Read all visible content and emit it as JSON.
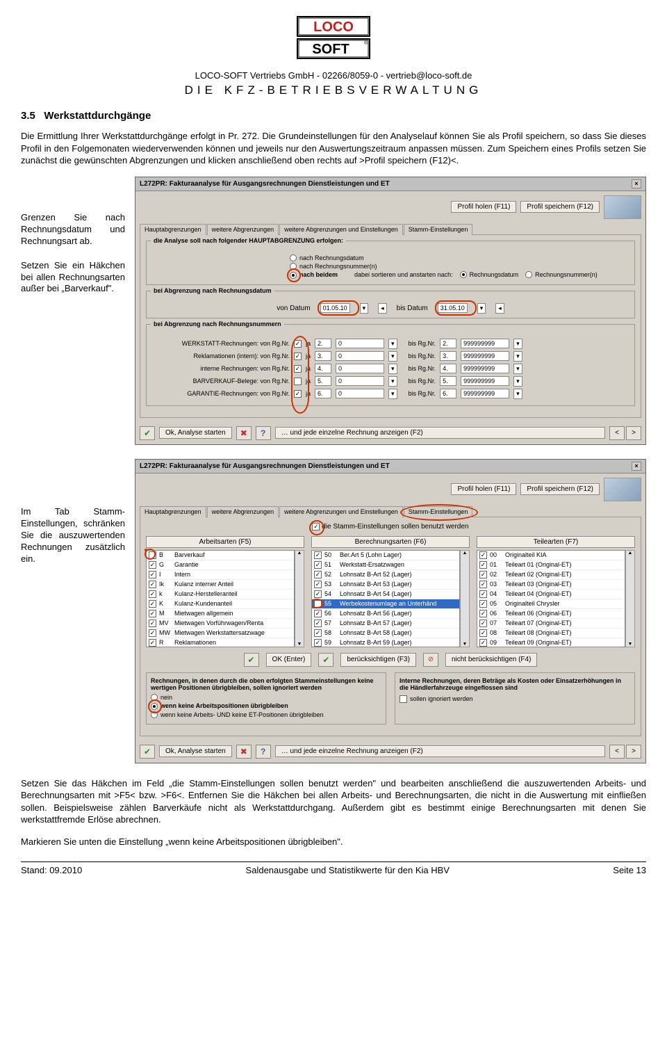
{
  "logo": {
    "t1": "LOCO",
    "t2": "SOFT",
    "color": "#c41e1e"
  },
  "header": {
    "line1": "LOCO-SOFT Vertriebs GmbH - 02266/8059-0 - vertrieb@loco-soft.de",
    "line2": "DIE KFZ-BETRIEBSVERWALTUNG"
  },
  "section": {
    "num": "3.5",
    "title": "Werkstattdurchgänge"
  },
  "p1": "Die Ermittlung Ihrer Werkstattdurchgänge erfolgt in Pr. 272. Die Grundeinstellungen für den Analyselauf können Sie als Profil speichern, so dass Sie dieses Profil in den Folgemonaten wiederverwenden können und jeweils nur den Auswertungszeitraum anpassen müssen. Zum Speichern eines Profils setzen Sie zunächst die gewünschten Abgrenzungen und klicken anschließend oben rechts auf >Profil speichern (F12)<.",
  "side1": {
    "a": "Grenzen Sie nach Rechnungsdatum und Rechnungsart ab.",
    "b": "Setzen Sie ein Häkchen bei allen Rechnungsarten außer bei „Barverkauf\"."
  },
  "side2": "Im Tab Stamm-Einstellungen, schränken Sie die auszuwertenden Rechnungen zusätzlich ein.",
  "dlg": {
    "title": "L272PR: Fakturaanalyse für Ausgangsrechnungen Dienstleistungen und ET",
    "profil_holen": "Profil holen (F11)",
    "profil_speichern": "Profil speichern (F12)",
    "tabs": [
      "Hauptabgrenzungen",
      "weitere Abgrenzungen",
      "weitere Abgrenzungen und Einstellungen",
      "Stamm-Einstellungen"
    ],
    "grp_legend": "die Analyse soll nach folgender HAUPTABGRENZUNG erfolgen:",
    "r1": "nach Rechnungsdatum",
    "r2": "nach Rechnungsnummer(n)",
    "r3": "nach beidem",
    "r3b": "dabei sortieren und anstarten nach:",
    "r3c": "Rechnungsdatum",
    "r3d": "Rechnungsnummer(n)",
    "date_legend": "bei Abgrenzung nach Rechnungsdatum",
    "von": "von Datum",
    "bis": "bis Datum",
    "d1": "01.05.10",
    "d2": "31.05.10",
    "rn_legend": "bei Abgrenzung nach Rechnungsnummern",
    "rnrows": [
      {
        "label": "WERKSTATT-Rechnungen: von Rg.Nr.",
        "ja": true,
        "von": "2.",
        "vz": "0",
        "bis": "bis Rg.Nr.",
        "b1": "2.",
        "b2": "999999999"
      },
      {
        "label": "Reklamationen (intern): von Rg.Nr.",
        "ja": true,
        "von": "3.",
        "vz": "0",
        "bis": "bis Rg.Nr.",
        "b1": "3.",
        "b2": "999999999"
      },
      {
        "label": "interne Rechnungen: von Rg.Nr.",
        "ja": true,
        "von": "4.",
        "vz": "0",
        "bis": "bis Rg.Nr.",
        "b1": "4.",
        "b2": "999999999"
      },
      {
        "label": "BARVERKAUF-Belege: von Rg.Nr.",
        "ja": false,
        "von": "5.",
        "vz": "0",
        "bis": "bis Rg.Nr.",
        "b1": "5.",
        "b2": "999999999"
      },
      {
        "label": "GARANTIE-Rechnungen: von Rg.Nr.",
        "ja": true,
        "von": "6.",
        "vz": "0",
        "bis": "bis Rg.Nr.",
        "b1": "6.",
        "b2": "999999999"
      }
    ],
    "foot_ok": "Ok, Analyse starten",
    "foot_einzel": "… und jede einzelne Rechnung anzeigen (F2)"
  },
  "dlg2": {
    "stamm_chk": "die Stamm-Einstellungen sollen benutzt werden",
    "col1h": "Arbeitsarten (F5)",
    "col2h": "Berechnungsarten (F6)",
    "col3h": "Teilearten (F7)",
    "col1": [
      {
        "c": "B",
        "t": "Barverkauf",
        "on": false
      },
      {
        "c": "G",
        "t": "Garantie",
        "on": true
      },
      {
        "c": "I",
        "t": "Intern",
        "on": true
      },
      {
        "c": "Ik",
        "t": "Kulanz interner Anteil",
        "on": true
      },
      {
        "c": "k",
        "t": "Kulanz-Herstelleranteil",
        "on": true
      },
      {
        "c": "K",
        "t": "Kulanz-Kundenanteil",
        "on": true
      },
      {
        "c": "M",
        "t": "Mietwagen allgemein",
        "on": true
      },
      {
        "c": "MV",
        "t": "Mietwagen Vorführwagen/Renta",
        "on": true
      },
      {
        "c": "MW",
        "t": "Mietwagen Werkstattersatzwage",
        "on": true
      },
      {
        "c": "R",
        "t": "Reklamationen",
        "on": true
      }
    ],
    "col2": [
      {
        "c": "50",
        "t": "Ber.Art 5 (Lohn Lager)",
        "on": true
      },
      {
        "c": "51",
        "t": "Werkstatt-Ersatzwagen",
        "on": true
      },
      {
        "c": "52",
        "t": "Lohnsatz B-Art 52 (Lager)",
        "on": true
      },
      {
        "c": "53",
        "t": "Lohnsatz B-Art 53 (Lager)",
        "on": true
      },
      {
        "c": "54",
        "t": "Lohnsatz B-Art 54 (Lager)",
        "on": true
      },
      {
        "c": "55",
        "t": "Werbekostenumlage an Unterhänd",
        "on": false,
        "sel": true
      },
      {
        "c": "56",
        "t": "Lohnsatz B-Art 56 (Lager)",
        "on": true
      },
      {
        "c": "57",
        "t": "Lohnsatz B-Art 57 (Lager)",
        "on": true
      },
      {
        "c": "58",
        "t": "Lohnsatz B-Art 58 (Lager)",
        "on": true
      },
      {
        "c": "59",
        "t": "Lohnsatz B-Art 59 (Lager)",
        "on": true
      }
    ],
    "col3": [
      {
        "c": "00",
        "t": "Originalteil KIA",
        "on": true
      },
      {
        "c": "01",
        "t": "Teileart 01 (Original-ET)",
        "on": true
      },
      {
        "c": "02",
        "t": "Teileart 02 (Original-ET)",
        "on": true
      },
      {
        "c": "03",
        "t": "Teileart 03 (Original-ET)",
        "on": true
      },
      {
        "c": "04",
        "t": "Teileart 04 (Original-ET)",
        "on": true
      },
      {
        "c": "05",
        "t": "Originalteil Chrysler",
        "on": true
      },
      {
        "c": "06",
        "t": "Teileart 06 (Original-ET)",
        "on": true
      },
      {
        "c": "07",
        "t": "Teileart 07 (Original-ET)",
        "on": true
      },
      {
        "c": "08",
        "t": "Teileart 08 (Original-ET)",
        "on": true
      },
      {
        "c": "09",
        "t": "Teileart 09 (Original-ET)",
        "on": true
      }
    ],
    "ok_enter": "OK (Enter)",
    "beruck": "berücksichtigen (F3)",
    "nicht_beruck": "nicht berücksichtigen (F4)",
    "lower_l1": "Rechnungen, in denen durch die oben erfolgten Stammeinstellungen keine wertigen Positionen übrigbleiben, sollen ignoriert werden",
    "lower_r1": "nein",
    "lower_r2": "wenn keine Arbeitspositionen übrigbleiben",
    "lower_r3": "wenn keine Arbeits- UND keine ET-Positionen übrigbleiben",
    "lower_right1": "Interne Rechnungen, deren Beträge als Kosten oder Einsatzerhöhungen in die Händlerfahrzeuge eingeflossen sind",
    "lower_right2": "sollen ignoriert werden"
  },
  "p2": "Setzen Sie das Häkchen im Feld „die Stamm-Einstellungen sollen benutzt werden\" und bearbeiten anschließend die auszuwertenden Arbeits- und Berechnungsarten mit >F5< bzw. >F6<. Entfernen Sie die Häkchen bei allen Arbeits- und Berechnungsarten, die nicht in die Auswertung mit einfließen sollen. Beispielsweise zählen Barverkäufe nicht als Werkstattdurchgang. Außerdem gibt es bestimmt einige Berechnungsarten mit denen Sie werkstattfremde Erlöse abrechnen.",
  "p3": "Markieren Sie unten die Einstellung „wenn keine Arbeitspositionen übrigbleiben\".",
  "footer": {
    "left": "Stand: 09.2010",
    "center": "Saldenausgabe und Statistikwerte für den Kia HBV",
    "right": "Seite 13"
  }
}
